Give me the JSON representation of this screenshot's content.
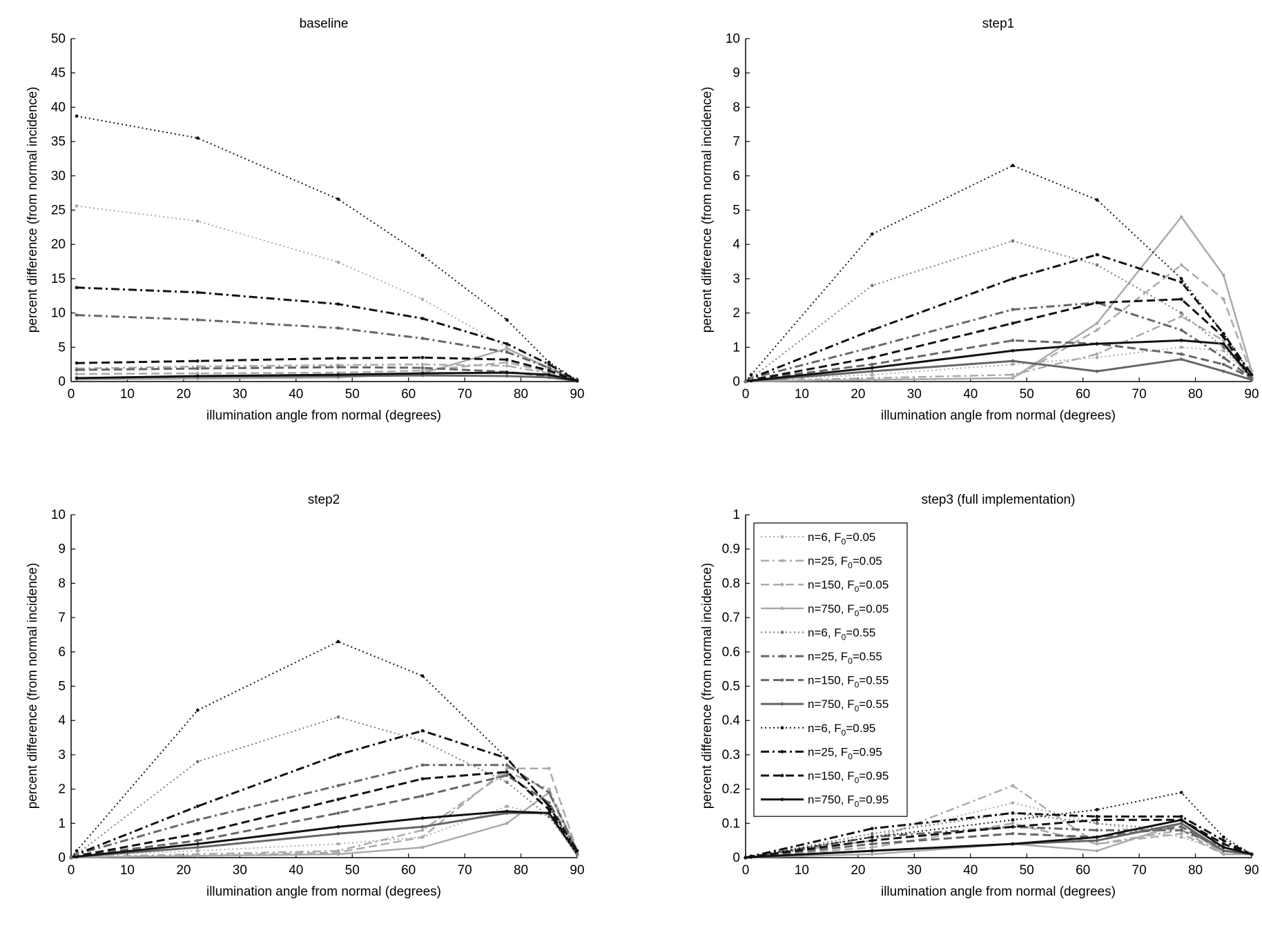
{
  "chart_data": [
    {
      "type": "line",
      "title": "baseline",
      "xlabel": "illumination angle from normal (degrees)",
      "ylabel": "percent difference (from normal incidence)",
      "xlim": [
        0,
        90
      ],
      "ylim": [
        0,
        50
      ],
      "xticks": [
        "0",
        "10",
        "20",
        "30",
        "40",
        "50",
        "60",
        "70",
        "80",
        "90"
      ],
      "yticks": [
        "0",
        "5",
        "10",
        "15",
        "20",
        "25",
        "30",
        "35",
        "40",
        "45",
        "50"
      ],
      "x": [
        1,
        22.5,
        47.5,
        62.5,
        77.5,
        85,
        90
      ],
      "series": [
        {
          "values": [
            25.6,
            23.4,
            17.4,
            12.0,
            5.0,
            1.7,
            0.1
          ],
          "color": "#aaaaaa",
          "style": "dotted",
          "width": 2,
          "marker": true
        },
        {
          "values": [
            1.9,
            2.2,
            2.4,
            2.5,
            2.3,
            1.2,
            0.1
          ],
          "color": "#aaaaaa",
          "style": "dashdot",
          "width": 2.5,
          "marker": true
        },
        {
          "values": [
            1.1,
            1.2,
            1.3,
            1.6,
            2.8,
            1.4,
            0.1
          ],
          "color": "#aaaaaa",
          "style": "dashed",
          "width": 2.5,
          "marker": true
        },
        {
          "values": [
            0.3,
            0.4,
            0.6,
            1.2,
            4.8,
            2.0,
            0.1
          ],
          "color": "#aaaaaa",
          "style": "solid",
          "width": 2.5,
          "marker": true
        },
        {
          "values": [
            9.7,
            9.0,
            7.8,
            6.3,
            4.3,
            2.0,
            0.1
          ],
          "color": "#666666",
          "style": "dashdot",
          "width": 3,
          "marker": true
        },
        {
          "values": [
            1.7,
            1.9,
            2.1,
            2.0,
            1.4,
            0.8,
            0.1
          ],
          "color": "#666666",
          "style": "dashed",
          "width": 3,
          "marker": true
        },
        {
          "values": [
            0.5,
            0.7,
            0.8,
            0.9,
            0.8,
            0.6,
            0.1
          ],
          "color": "#666666",
          "style": "solid",
          "width": 3,
          "marker": true
        },
        {
          "values": [
            38.7,
            35.5,
            26.6,
            18.4,
            9.0,
            2.8,
            0.2
          ],
          "color": "#111111",
          "style": "dotted",
          "width": 2,
          "marker": true
        },
        {
          "values": [
            13.7,
            13.0,
            11.3,
            9.2,
            5.5,
            2.5,
            0.1
          ],
          "color": "#111111",
          "style": "dashdot",
          "width": 3,
          "marker": true
        },
        {
          "values": [
            2.7,
            3.0,
            3.4,
            3.5,
            3.2,
            1.6,
            0.1
          ],
          "color": "#111111",
          "style": "dashed",
          "width": 3,
          "marker": true
        },
        {
          "values": [
            0.5,
            0.8,
            1.0,
            1.2,
            1.3,
            1.0,
            0.1
          ],
          "color": "#111111",
          "style": "solid",
          "width": 3,
          "marker": true
        }
      ]
    },
    {
      "type": "line",
      "title": "step1",
      "xlabel": "illumination angle from normal (degrees)",
      "ylabel": "percent difference (from normal incidence)",
      "xlim": [
        0,
        90
      ],
      "ylim": [
        0,
        10
      ],
      "xticks": [
        "0",
        "10",
        "20",
        "30",
        "40",
        "50",
        "60",
        "70",
        "80",
        "90"
      ],
      "yticks": [
        "0",
        "1",
        "2",
        "3",
        "4",
        "5",
        "6",
        "7",
        "8",
        "9",
        "10"
      ],
      "x": [
        0,
        1,
        22.5,
        47.5,
        62.5,
        77.5,
        85,
        90
      ],
      "series": [
        {
          "values": [
            0,
            0.05,
            0.2,
            0.5,
            0.7,
            1.0,
            0.9,
            0.1
          ],
          "color": "#aaaaaa",
          "style": "dotted",
          "width": 2,
          "marker": true
        },
        {
          "values": [
            0,
            0.02,
            0.1,
            0.2,
            0.8,
            1.9,
            1.2,
            0.1
          ],
          "color": "#aaaaaa",
          "style": "dashdot",
          "width": 2.5,
          "marker": true
        },
        {
          "values": [
            0,
            0.02,
            0.05,
            0.1,
            1.5,
            3.4,
            2.4,
            0.2
          ],
          "color": "#aaaaaa",
          "style": "dashed",
          "width": 2.5,
          "marker": true
        },
        {
          "values": [
            0,
            0.01,
            0.05,
            0.1,
            1.7,
            4.8,
            3.1,
            0.3
          ],
          "color": "#aaaaaa",
          "style": "solid",
          "width": 2.5,
          "marker": true
        },
        {
          "values": [
            0,
            0.1,
            1.0,
            2.1,
            2.3,
            1.5,
            0.7,
            0.1
          ],
          "color": "#666666",
          "style": "dashdot",
          "width": 3,
          "marker": true
        },
        {
          "values": [
            0,
            0.05,
            0.5,
            1.2,
            1.1,
            0.8,
            0.5,
            0.1
          ],
          "color": "#666666",
          "style": "dashed",
          "width": 3,
          "marker": true
        },
        {
          "values": [
            0,
            0.02,
            0.3,
            0.6,
            0.3,
            0.65,
            0.3,
            0.05
          ],
          "color": "#666666",
          "style": "solid",
          "width": 3,
          "marker": true
        },
        {
          "values": [
            0,
            0.2,
            4.3,
            6.3,
            5.3,
            3.0,
            1.4,
            0.2
          ],
          "color": "#111111",
          "style": "dotted",
          "width": 2,
          "marker": true
        },
        {
          "values": [
            0,
            0.1,
            1.5,
            3.0,
            3.7,
            2.9,
            1.4,
            0.2
          ],
          "color": "#111111",
          "style": "dashdot",
          "width": 3,
          "marker": true
        },
        {
          "values": [
            0,
            0.05,
            0.7,
            1.7,
            2.3,
            2.4,
            1.3,
            0.1
          ],
          "color": "#111111",
          "style": "dashed",
          "width": 3,
          "marker": true
        },
        {
          "values": [
            0,
            0.03,
            0.4,
            0.9,
            1.1,
            1.2,
            1.1,
            0.1
          ],
          "color": "#111111",
          "style": "solid",
          "width": 3,
          "marker": true
        },
        {
          "values": [
            0,
            0.1,
            2.8,
            4.1,
            3.4,
            2.0,
            1.0,
            0.1
          ],
          "color": "#777777",
          "style": "dotted",
          "width": 2,
          "marker": true
        }
      ]
    },
    {
      "type": "line",
      "title": "step2",
      "xlabel": "illumination angle from normal (degrees)",
      "ylabel": "percent difference (from normal incidence)",
      "xlim": [
        0,
        90
      ],
      "ylim": [
        0,
        10
      ],
      "xticks": [
        "0",
        "10",
        "20",
        "30",
        "40",
        "50",
        "60",
        "70",
        "80",
        "90"
      ],
      "yticks": [
        "0",
        "1",
        "2",
        "3",
        "4",
        "5",
        "6",
        "7",
        "8",
        "9",
        "10"
      ],
      "x": [
        0,
        1,
        22.5,
        47.5,
        62.5,
        77.5,
        85,
        90
      ],
      "series": [
        {
          "values": [
            0,
            0.05,
            0.2,
            0.4,
            0.6,
            1.5,
            1.2,
            0.1
          ],
          "color": "#aaaaaa",
          "style": "dotted",
          "width": 2,
          "marker": true
        },
        {
          "values": [
            0,
            0.02,
            0.1,
            0.2,
            0.8,
            2.5,
            2.0,
            0.2
          ],
          "color": "#aaaaaa",
          "style": "dashdot",
          "width": 2.5,
          "marker": true
        },
        {
          "values": [
            0,
            0.02,
            0.05,
            0.15,
            0.6,
            2.6,
            2.6,
            0.2
          ],
          "color": "#aaaaaa",
          "style": "dashed",
          "width": 2.5,
          "marker": true
        },
        {
          "values": [
            0,
            0.01,
            0.05,
            0.1,
            0.3,
            1.0,
            1.9,
            0.2
          ],
          "color": "#aaaaaa",
          "style": "solid",
          "width": 2.5,
          "marker": true
        },
        {
          "values": [
            0,
            0.1,
            1.1,
            2.1,
            2.7,
            2.7,
            1.9,
            0.2
          ],
          "color": "#666666",
          "style": "dashdot",
          "width": 3,
          "marker": true
        },
        {
          "values": [
            0,
            0.05,
            0.5,
            1.3,
            1.8,
            2.4,
            1.6,
            0.2
          ],
          "color": "#666666",
          "style": "dashed",
          "width": 3,
          "marker": true
        },
        {
          "values": [
            0,
            0.03,
            0.3,
            0.7,
            0.9,
            1.3,
            1.3,
            0.1
          ],
          "color": "#666666",
          "style": "solid",
          "width": 3,
          "marker": true
        },
        {
          "values": [
            0,
            0.2,
            4.3,
            6.3,
            5.3,
            2.9,
            1.5,
            0.2
          ],
          "color": "#111111",
          "style": "dotted",
          "width": 2,
          "marker": true
        },
        {
          "values": [
            0,
            0.1,
            1.5,
            3.0,
            3.7,
            2.9,
            1.5,
            0.2
          ],
          "color": "#111111",
          "style": "dashdot",
          "width": 3,
          "marker": true
        },
        {
          "values": [
            0,
            0.05,
            0.7,
            1.7,
            2.3,
            2.5,
            1.4,
            0.1
          ],
          "color": "#111111",
          "style": "dashed",
          "width": 3,
          "marker": true
        },
        {
          "values": [
            0,
            0.03,
            0.4,
            0.9,
            1.15,
            1.35,
            1.3,
            0.1
          ],
          "color": "#111111",
          "style": "solid",
          "width": 3,
          "marker": true
        },
        {
          "values": [
            0,
            0.1,
            2.8,
            4.1,
            3.4,
            2.2,
            1.2,
            0.1
          ],
          "color": "#777777",
          "style": "dotted",
          "width": 2,
          "marker": true
        }
      ]
    },
    {
      "type": "line",
      "title": "step3 (full implementation)",
      "xlabel": "illumination angle from normal (degrees)",
      "ylabel": "percent difference (from normal incidence)",
      "xlim": [
        0,
        90
      ],
      "ylim": [
        0,
        1
      ],
      "xticks": [
        "0",
        "10",
        "20",
        "30",
        "40",
        "50",
        "60",
        "70",
        "80",
        "90"
      ],
      "yticks": [
        "0",
        "0.1",
        "0.2",
        "0.3",
        "0.4",
        "0.5",
        "0.6",
        "0.7",
        "0.8",
        "0.9",
        "1"
      ],
      "x": [
        0,
        1,
        22.5,
        47.5,
        62.5,
        77.5,
        85,
        90
      ],
      "series": [
        {
          "name": [
            "n=6, F",
            "0",
            "=0.05"
          ],
          "values": [
            0,
            0.002,
            0.06,
            0.16,
            0.1,
            0.06,
            0.02,
            0.01
          ],
          "color": "#aaaaaa",
          "style": "dotted",
          "width": 2,
          "marker": true
        },
        {
          "name": [
            "n=25, F",
            "0",
            "=0.05"
          ],
          "values": [
            0,
            0.002,
            0.05,
            0.21,
            0.04,
            0.08,
            0.01,
            0.01
          ],
          "color": "#aaaaaa",
          "style": "dashdot",
          "width": 2.5,
          "marker": true
        },
        {
          "name": [
            "n=150, F",
            "0",
            "=0.05"
          ],
          "values": [
            0,
            0.002,
            0.03,
            0.1,
            0.04,
            0.07,
            0.01,
            0.01
          ],
          "color": "#aaaaaa",
          "style": "dashed",
          "width": 2.5,
          "marker": true
        },
        {
          "name": [
            "n=750, F",
            "0",
            "=0.05"
          ],
          "values": [
            0,
            0.001,
            0.01,
            0.04,
            0.02,
            0.1,
            0.01,
            0.01
          ],
          "color": "#aaaaaa",
          "style": "solid",
          "width": 2.5,
          "marker": true
        },
        {
          "name": [
            "n=6, F",
            "0",
            "=0.55"
          ],
          "values": [
            0,
            0.003,
            0.07,
            0.13,
            0.1,
            0.08,
            0.03,
            0.01
          ],
          "color": "#777777",
          "style": "dotted",
          "width": 2,
          "marker": true
        },
        {
          "name": [
            "n=25, F",
            "0",
            "=0.55"
          ],
          "values": [
            0,
            0.003,
            0.06,
            0.09,
            0.08,
            0.08,
            0.03,
            0.01
          ],
          "color": "#666666",
          "style": "dashdot",
          "width": 3,
          "marker": true
        },
        {
          "name": [
            "n=150, F",
            "0",
            "=0.55"
          ],
          "values": [
            0,
            0.002,
            0.04,
            0.07,
            0.06,
            0.09,
            0.02,
            0.01
          ],
          "color": "#666666",
          "style": "dashed",
          "width": 3,
          "marker": true
        },
        {
          "name": [
            "n=750, F",
            "0",
            "=0.55"
          ],
          "values": [
            0,
            0.001,
            0.02,
            0.04,
            0.05,
            0.1,
            0.02,
            0.01
          ],
          "color": "#666666",
          "style": "solid",
          "width": 3,
          "marker": true
        },
        {
          "name": [
            "n=6, F",
            "0",
            "=0.95"
          ],
          "values": [
            0,
            0.004,
            0.06,
            0.11,
            0.14,
            0.19,
            0.06,
            0.01
          ],
          "color": "#111111",
          "style": "dotted",
          "width": 2,
          "marker": true
        },
        {
          "name": [
            "n=25, F",
            "0",
            "=0.95"
          ],
          "values": [
            0,
            0.004,
            0.085,
            0.13,
            0.12,
            0.12,
            0.05,
            0.01
          ],
          "color": "#111111",
          "style": "dashdot",
          "width": 3,
          "marker": true
        },
        {
          "name": [
            "n=150, F",
            "0",
            "=0.95"
          ],
          "values": [
            0,
            0.003,
            0.05,
            0.09,
            0.11,
            0.11,
            0.04,
            0.01
          ],
          "color": "#111111",
          "style": "dashed",
          "width": 3,
          "marker": true
        },
        {
          "name": [
            "n=750, F",
            "0",
            "=0.95"
          ],
          "values": [
            0,
            0.002,
            0.02,
            0.04,
            0.06,
            0.11,
            0.03,
            0.01
          ],
          "color": "#111111",
          "style": "solid",
          "width": 3,
          "marker": true
        }
      ],
      "legend": {
        "placement": "top-left"
      }
    }
  ]
}
